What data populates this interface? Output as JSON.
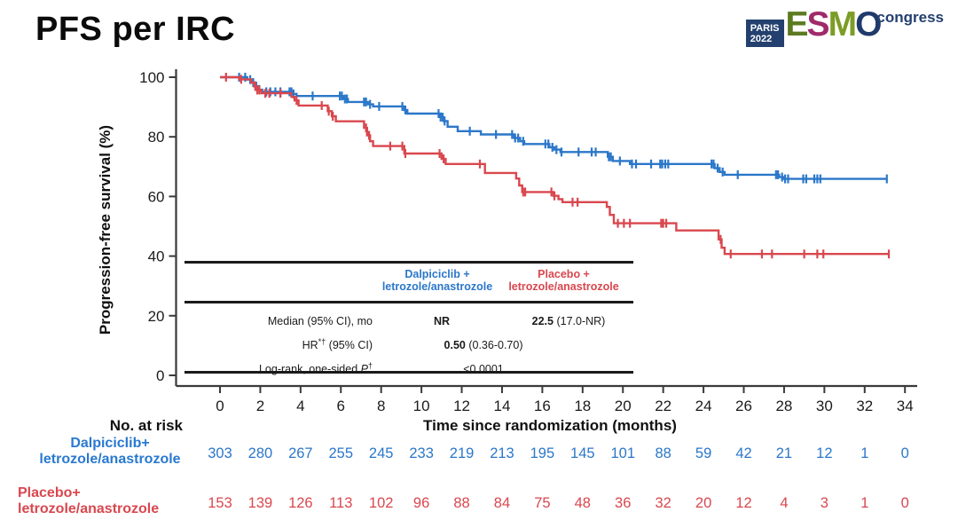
{
  "slide": {
    "title": "PFS per IRC"
  },
  "logo": {
    "paris": "PARIS",
    "year": "2022",
    "congress": "congress",
    "navy": "#24406f",
    "letters": [
      {
        "ch": "E",
        "color": "#5d7a1f"
      },
      {
        "ch": "S",
        "color": "#a02b6a"
      },
      {
        "ch": "M",
        "color": "#7d9c26"
      },
      {
        "ch": "O",
        "color": "#1f3a6b"
      }
    ]
  },
  "chart_data": {
    "type": "line",
    "subtype": "kaplan-meier",
    "title": "PFS per IRC",
    "xlabel": "Time since randomization (months)",
    "ylabel": "Progression-free survival (%)",
    "xlim": [
      0,
      34
    ],
    "ylim": [
      0,
      100
    ],
    "x_ticks": [
      0,
      2,
      4,
      6,
      8,
      10,
      12,
      14,
      16,
      18,
      20,
      22,
      24,
      26,
      28,
      30,
      32,
      34
    ],
    "y_ticks": [
      0,
      20,
      40,
      60,
      80,
      100
    ],
    "grid": false,
    "series": [
      {
        "name": "Dalpiciclib + letrozole/anastrozole",
        "color": "#2b77c9",
        "steps": [
          [
            0,
            100
          ],
          [
            1.2,
            100
          ],
          [
            1.35,
            99.2
          ],
          [
            1.55,
            98.2
          ],
          [
            1.75,
            97.0
          ],
          [
            1.95,
            95.8
          ],
          [
            2.1,
            95.1
          ],
          [
            3.4,
            95.1
          ],
          [
            3.6,
            94.4
          ],
          [
            3.8,
            93.7
          ],
          [
            5.95,
            93.7
          ],
          [
            6.15,
            92.7
          ],
          [
            6.35,
            91.7
          ],
          [
            7.1,
            91.7
          ],
          [
            7.35,
            90.9
          ],
          [
            7.6,
            90.2
          ],
          [
            9.0,
            90.2
          ],
          [
            9.15,
            89.0
          ],
          [
            9.3,
            87.8
          ],
          [
            10.8,
            87.8
          ],
          [
            10.95,
            86.6
          ],
          [
            11.1,
            85.3
          ],
          [
            11.3,
            83.4
          ],
          [
            11.7,
            83.4
          ],
          [
            11.8,
            81.9
          ],
          [
            12.8,
            81.9
          ],
          [
            12.95,
            80.8
          ],
          [
            14.4,
            80.8
          ],
          [
            14.6,
            79.6
          ],
          [
            14.9,
            78.5
          ],
          [
            15.1,
            77.6
          ],
          [
            16.1,
            77.6
          ],
          [
            16.35,
            76.5
          ],
          [
            16.6,
            75.7
          ],
          [
            16.9,
            74.9
          ],
          [
            19.05,
            74.9
          ],
          [
            19.25,
            73.3
          ],
          [
            19.5,
            71.9
          ],
          [
            20.2,
            71.9
          ],
          [
            20.35,
            70.9
          ],
          [
            24.35,
            70.9
          ],
          [
            24.55,
            69.5
          ],
          [
            24.8,
            68.2
          ],
          [
            25.05,
            67.3
          ],
          [
            27.55,
            67.3
          ],
          [
            27.75,
            66.5
          ],
          [
            27.95,
            65.9
          ],
          [
            33.1,
            65.9
          ]
        ],
        "censors": [
          0.95,
          1.25,
          1.5,
          1.65,
          1.8,
          2.3,
          2.5,
          2.75,
          3.0,
          3.45,
          3.55,
          3.65,
          4.6,
          5.95,
          6.05,
          6.2,
          6.3,
          7.15,
          7.25,
          7.45,
          7.9,
          9.05,
          9.2,
          10.85,
          10.95,
          11.05,
          11.15,
          12.4,
          13.7,
          14.5,
          14.65,
          14.8,
          15.05,
          16.15,
          16.3,
          16.5,
          16.7,
          16.95,
          17.8,
          18.45,
          18.65,
          19.3,
          19.4,
          19.85,
          20.45,
          20.65,
          21.4,
          21.85,
          21.95,
          22.1,
          22.25,
          24.4,
          24.5,
          24.7,
          24.95,
          25.7,
          27.6,
          27.7,
          27.9,
          28.05,
          28.2,
          28.95,
          29.1,
          29.5,
          29.65,
          29.8,
          33.1
        ],
        "median_mo": "NR",
        "n_at_risk": [
          303,
          280,
          267,
          255,
          245,
          233,
          219,
          213,
          195,
          145,
          101,
          88,
          59,
          42,
          21,
          12,
          1,
          0
        ]
      },
      {
        "name": "Placebo + letrozole/anastrozole",
        "color": "#d9474e",
        "steps": [
          [
            0,
            100
          ],
          [
            0.85,
            100
          ],
          [
            0.95,
            99.3
          ],
          [
            1.45,
            99.3
          ],
          [
            1.55,
            98.2
          ],
          [
            1.7,
            96.9
          ],
          [
            1.85,
            95.7
          ],
          [
            2.05,
            94.6
          ],
          [
            3.4,
            94.6
          ],
          [
            3.55,
            93.4
          ],
          [
            3.7,
            92.2
          ],
          [
            3.9,
            90.5
          ],
          [
            5.15,
            90.5
          ],
          [
            5.35,
            88.6
          ],
          [
            5.55,
            86.9
          ],
          [
            5.75,
            85.2
          ],
          [
            7.0,
            85.2
          ],
          [
            7.15,
            83.0
          ],
          [
            7.3,
            80.5
          ],
          [
            7.45,
            78.5
          ],
          [
            7.6,
            76.9
          ],
          [
            8.95,
            76.9
          ],
          [
            9.15,
            74.4
          ],
          [
            10.85,
            74.4
          ],
          [
            11.0,
            72.6
          ],
          [
            11.2,
            70.9
          ],
          [
            12.95,
            70.9
          ],
          [
            13.15,
            67.9
          ],
          [
            14.55,
            67.9
          ],
          [
            14.7,
            66.0
          ],
          [
            14.85,
            63.7
          ],
          [
            15.0,
            61.5
          ],
          [
            16.3,
            61.5
          ],
          [
            16.55,
            60.2
          ],
          [
            16.8,
            59.1
          ],
          [
            17.0,
            58.1
          ],
          [
            19.05,
            58.1
          ],
          [
            19.2,
            56.5
          ],
          [
            19.35,
            53.8
          ],
          [
            19.55,
            51.0
          ],
          [
            22.45,
            51.0
          ],
          [
            22.65,
            48.6
          ],
          [
            24.55,
            48.6
          ],
          [
            24.75,
            45.6
          ],
          [
            24.9,
            42.8
          ],
          [
            25.05,
            40.7
          ],
          [
            33.2,
            40.7
          ]
        ],
        "censors": [
          0.3,
          1.05,
          1.75,
          1.85,
          1.95,
          2.25,
          2.45,
          3.0,
          3.8,
          5.05,
          5.4,
          5.6,
          7.25,
          7.4,
          8.45,
          9.05,
          9.2,
          10.9,
          11.1,
          12.9,
          15.05,
          15.15,
          16.45,
          16.6,
          17.5,
          17.75,
          19.75,
          20.05,
          20.35,
          21.9,
          22.0,
          22.15,
          24.85,
          25.35,
          26.9,
          27.4,
          29.0,
          29.65,
          29.95,
          33.2
        ],
        "median_mo": "22.5 (17.0-NR)",
        "n_at_risk": [
          153,
          139,
          126,
          113,
          102,
          96,
          88,
          84,
          75,
          48,
          36,
          32,
          20,
          12,
          4,
          3,
          1,
          0
        ]
      }
    ],
    "annotations": {
      "hr": "HR (95% CI) = 0.50 (0.36-0.70)",
      "log_rank_p": "<0.0001"
    }
  },
  "stats_table": {
    "col1_header_line1": "Dalpiciclib +",
    "col1_header_line2": "letrozole/anastrozole",
    "col2_header_line1": "Placebo +",
    "col2_header_line2": "letrozole/anastrozole",
    "rows": [
      {
        "label": "Median (95% CI), mo",
        "col1_bold": "NR",
        "col2_bold": "22.5",
        "col2_rest": " (17.0-NR)"
      },
      {
        "label_main": "HR",
        "label_sup": "*†",
        "label_tail": " (95% CI)",
        "value_bold": "0.50",
        "value_rest": " (0.36-0.70)"
      },
      {
        "label_main": "Log-rank, one-sided ",
        "label_italic": "P",
        "label_sup": "†",
        "value": "<0.0001"
      }
    ]
  },
  "risk_table": {
    "heading": "No. at risk",
    "rows": [
      {
        "label_line1": "Dalpiciclib+",
        "label_line2": "letrozole/anastrozole",
        "color": "#2979cf"
      },
      {
        "label_line1": "Placebo+",
        "label_line2": "letrozole/anastrozole",
        "color": "#d9474e"
      }
    ]
  }
}
